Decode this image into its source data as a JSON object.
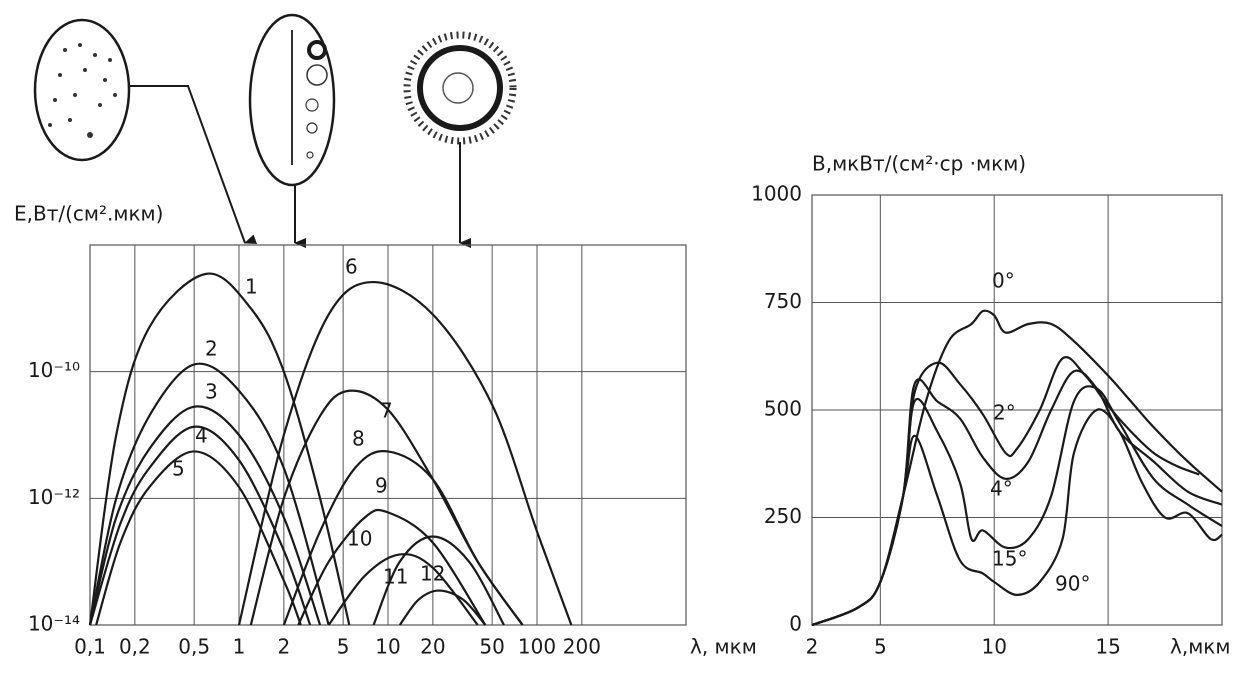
{
  "chart_data": [
    {
      "type": "line",
      "log_x": true,
      "log_y": true,
      "grid": true,
      "color": "#1a1a1a",
      "y_label": "E,Вт/(см².мкм)",
      "x_label": "λ, мкм",
      "xlim": [
        0.1,
        1000
      ],
      "ylim": [
        1e-14,
        1e-08
      ],
      "xticks": [
        {
          "value": 0.1,
          "label": "0,1"
        },
        {
          "value": 0.2,
          "label": "0,2"
        },
        {
          "value": 0.5,
          "label": "0,5"
        },
        1,
        2,
        5,
        10,
        20,
        50,
        100,
        200
      ],
      "yticks": [
        {
          "value": 1e-14,
          "label": "10⁻¹⁴"
        },
        {
          "value": 1e-12,
          "label": "10⁻¹²"
        },
        {
          "value": 1e-10,
          "label": "10⁻¹⁰"
        }
      ],
      "series": [
        {
          "name": "1",
          "x": [
            0.1,
            0.15,
            0.25,
            0.6,
            1.2,
            2,
            3.5,
            5.5
          ],
          "values": [
            1e-14,
            1e-11,
            5e-10,
            3.5e-09,
            1e-09,
            1e-10,
            1e-12,
            1e-14
          ]
        },
        {
          "name": "2",
          "x": [
            0.1,
            0.15,
            0.25,
            0.5,
            1,
            2,
            4
          ],
          "values": [
            1e-14,
            1e-12,
            2e-11,
            1.3e-10,
            5e-11,
            3e-12,
            1e-14
          ]
        },
        {
          "name": "3",
          "x": [
            0.1,
            0.15,
            0.25,
            0.5,
            1,
            2,
            3.5
          ],
          "values": [
            1e-14,
            5e-13,
            6e-12,
            2.8e-11,
            1e-11,
            5e-13,
            1e-14
          ]
        },
        {
          "name": "4",
          "x": [
            0.1,
            0.16,
            0.25,
            0.5,
            1,
            2,
            3
          ],
          "values": [
            1e-14,
            4e-13,
            3e-12,
            1.35e-11,
            4e-12,
            1.5e-13,
            1e-14
          ]
        },
        {
          "name": "5",
          "x": [
            0.11,
            0.16,
            0.25,
            0.5,
            1,
            2,
            2.6
          ],
          "values": [
            1e-14,
            2e-13,
            1.5e-12,
            5.5e-12,
            1.5e-12,
            5e-14,
            1e-14
          ]
        },
        {
          "name": "6",
          "x": [
            1,
            2,
            4,
            8,
            20,
            50,
            100,
            170
          ],
          "values": [
            1e-14,
            1e-11,
            8e-10,
            2.6e-09,
            8e-10,
            3e-11,
            3e-13,
            1e-14
          ]
        },
        {
          "name": "7",
          "x": [
            1.2,
            2,
            3.5,
            5.5,
            10,
            20,
            40,
            80
          ],
          "values": [
            1e-14,
            1e-12,
            2e-11,
            5e-11,
            2.5e-11,
            2e-12,
            1e-13,
            1e-14
          ]
        },
        {
          "name": "8",
          "x": [
            2,
            3.5,
            6,
            10,
            20,
            40,
            80
          ],
          "values": [
            1e-14,
            3e-13,
            3e-12,
            5.5e-12,
            2e-12,
            1e-13,
            1e-14
          ]
        },
        {
          "name": "9",
          "x": [
            2.5,
            4,
            7,
            10,
            20,
            45
          ],
          "values": [
            1e-14,
            1e-13,
            5e-13,
            6e-13,
            2e-13,
            1e-14
          ]
        },
        {
          "name": "10",
          "x": [
            4,
            7,
            12,
            20,
            40
          ],
          "values": [
            1e-14,
            6e-14,
            1.3e-13,
            8e-14,
            1e-14
          ]
        },
        {
          "name": "11",
          "x": [
            8,
            12,
            20,
            35,
            60
          ],
          "values": [
            1e-14,
            1e-13,
            2.5e-13,
            1e-13,
            1e-14
          ]
        },
        {
          "name": "12",
          "x": [
            12,
            16,
            22,
            32,
            45
          ],
          "values": [
            1e-14,
            2.5e-14,
            3.5e-14,
            2.5e-14,
            1e-14
          ]
        }
      ]
    },
    {
      "type": "line",
      "log_x": false,
      "log_y": false,
      "grid": true,
      "color": "#1a1a1a",
      "y_label": "B,мкВт/(см²·ср ·мкм)",
      "x_label": "λ,мкм",
      "xlim": [
        2,
        20
      ],
      "ylim": [
        0,
        1000
      ],
      "xticks": [
        2,
        5,
        10,
        15
      ],
      "yticks": [
        0,
        250,
        500,
        750,
        1000
      ],
      "series": [
        {
          "name": "0°",
          "x": [
            2,
            4,
            5,
            6,
            7,
            8,
            9,
            9.5,
            10,
            10.5,
            11.5,
            12.5,
            13.5,
            15,
            16,
            17,
            18.5,
            20
          ],
          "values": [
            0,
            40,
            100,
            300,
            520,
            660,
            700,
            730,
            720,
            680,
            700,
            700,
            660,
            580,
            520,
            460,
            380,
            310
          ]
        },
        {
          "name": "2°",
          "x": [
            2,
            4,
            5,
            6,
            6.5,
            7.5,
            8.5,
            9.5,
            10.5,
            11,
            12,
            13,
            14,
            15,
            16,
            17,
            18,
            19
          ],
          "values": [
            0,
            40,
            100,
            300,
            540,
            610,
            560,
            490,
            400,
            410,
            500,
            620,
            580,
            510,
            450,
            400,
            370,
            350
          ]
        },
        {
          "name": "4°",
          "x": [
            2,
            4,
            5,
            6,
            6.5,
            7.5,
            8.5,
            9.5,
            10.5,
            11.5,
            12.5,
            13.5,
            14.5,
            15.5,
            17,
            18.5,
            20
          ],
          "values": [
            0,
            40,
            100,
            300,
            560,
            520,
            480,
            390,
            340,
            380,
            500,
            590,
            550,
            450,
            380,
            310,
            280
          ]
        },
        {
          "name": "15°",
          "x": [
            2,
            4,
            5,
            6,
            6.5,
            7.5,
            8.5,
            9,
            9.5,
            10.5,
            11.5,
            12.5,
            13.5,
            14.5,
            15.5,
            17,
            18.5,
            20
          ],
          "values": [
            0,
            40,
            100,
            300,
            520,
            450,
            330,
            200,
            220,
            180,
            200,
            300,
            520,
            550,
            470,
            340,
            280,
            230
          ]
        },
        {
          "name": "90°",
          "x": [
            2,
            4,
            5,
            6,
            6.5,
            7.5,
            8.5,
            9.5,
            10,
            11,
            12,
            13,
            13.5,
            14.5,
            15.5,
            16.5,
            17.5,
            18.5,
            19.5,
            20
          ],
          "values": [
            0,
            40,
            100,
            300,
            440,
            300,
            150,
            120,
            100,
            70,
            100,
            200,
            400,
            500,
            450,
            330,
            250,
            260,
            200,
            210
          ]
        }
      ]
    }
  ]
}
